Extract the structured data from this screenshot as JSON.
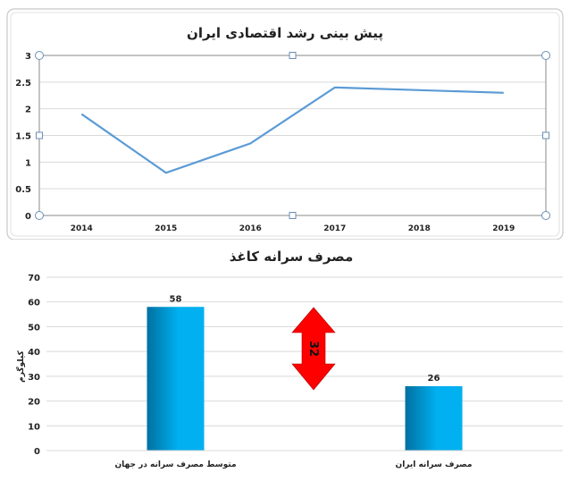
{
  "chart_data": [
    {
      "type": "line",
      "title": "پیش بینی رشد اقتصادی ایران",
      "x": [
        "2014",
        "2015",
        "2016",
        "2017",
        "2018",
        "2019"
      ],
      "series": [
        {
          "values": [
            1.9,
            0.8,
            1.35,
            2.4,
            2.35,
            2.3
          ]
        }
      ],
      "yticks": [
        "0",
        "0.5",
        "1",
        "1.5",
        "2",
        "2.5",
        "3"
      ],
      "ylim": [
        0,
        3
      ],
      "grid": true,
      "legend": "none",
      "colors": {
        "line": "#5b9bd5",
        "grid": "#d9d9d9",
        "frame": "#c8c8c8"
      }
    },
    {
      "type": "bar",
      "title": "مصرف سرانه کاغذ",
      "ylabel": "کیلوگرم",
      "categories": [
        "متوسط مصرف سرانه در جهان",
        "مصرف سرانه ایران"
      ],
      "values": [
        58,
        26
      ],
      "data_labels": [
        "58",
        "26"
      ],
      "yticks": [
        "0",
        "10",
        "20",
        "30",
        "40",
        "50",
        "60",
        "70"
      ],
      "ylim": [
        0,
        70
      ],
      "grid": true,
      "annotation": {
        "text": "32",
        "shape": "double-arrow-vertical",
        "color": "#ff0000"
      },
      "colors": {
        "bar_light": "#00b0f0",
        "bar_dark": "#0070a0",
        "grid": "#d9d9d9"
      }
    }
  ]
}
